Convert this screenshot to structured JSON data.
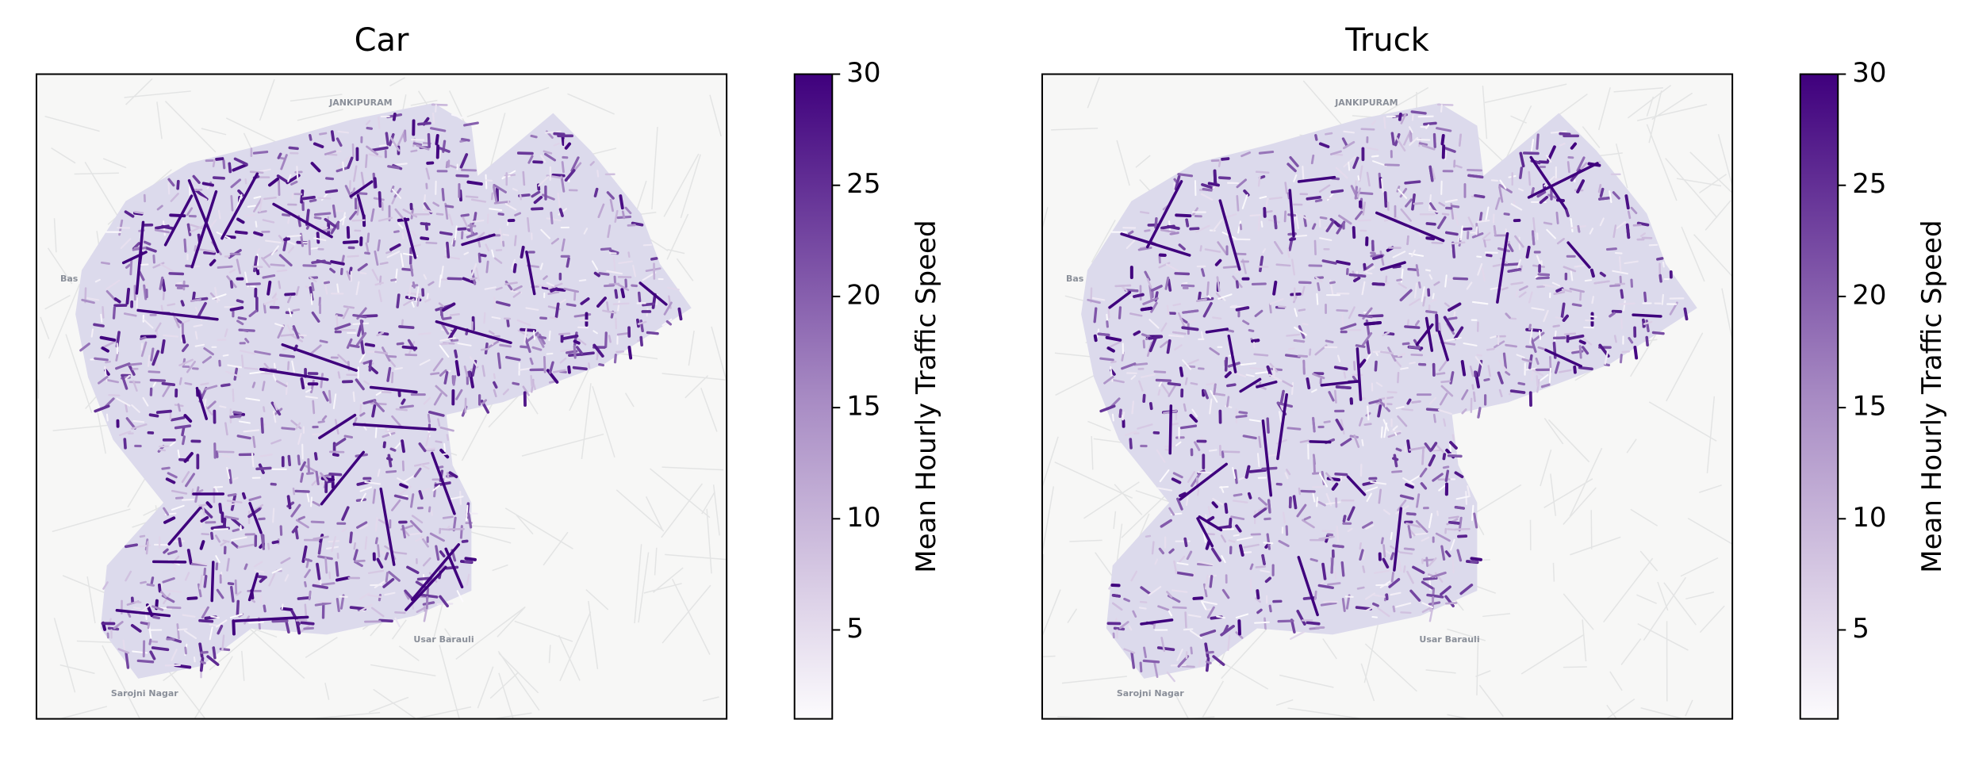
{
  "chart_data": [
    {
      "type": "map",
      "title": "Car",
      "colorbar": {
        "label": "Mean Hourly Traffic Speed",
        "lim": [
          1,
          30
        ],
        "ticks": [
          5,
          10,
          15,
          20,
          25,
          30
        ],
        "colors": [
          "#fcfbfd",
          "#3f007d"
        ]
      },
      "place_labels": [
        "JANKIPURAM",
        "Bas",
        "Usar Barauli",
        "Sarojni Nagar"
      ]
    },
    {
      "type": "map",
      "title": "Truck",
      "colorbar": {
        "label": "Mean Hourly Traffic Speed",
        "lim": [
          1,
          30
        ],
        "ticks": [
          5,
          10,
          15,
          20,
          25,
          30
        ],
        "colors": [
          "#fcfbfd",
          "#3f007d"
        ]
      },
      "place_labels": [
        "JANKIPURAM",
        "Bas",
        "Usar Barauli",
        "Sarojni Nagar"
      ]
    }
  ]
}
